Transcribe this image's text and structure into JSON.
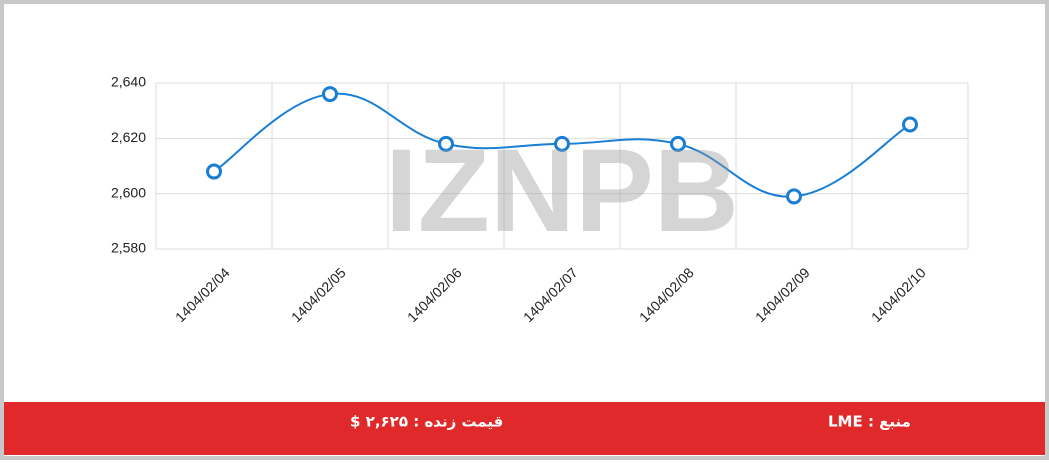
{
  "chart_data": {
    "type": "line",
    "categories": [
      "1404/02/04",
      "1404/02/05",
      "1404/02/06",
      "1404/02/07",
      "1404/02/08",
      "1404/02/09",
      "1404/02/10"
    ],
    "values": [
      2608,
      2636,
      2618,
      2618,
      2618,
      2599,
      2625
    ],
    "color": "#1a7fd4",
    "ylim": [
      2580,
      2640
    ],
    "yticks": [
      {
        "value": 2580,
        "label": "2,580"
      },
      {
        "value": 2600,
        "label": "2,600"
      },
      {
        "value": 2620,
        "label": "2,620"
      },
      {
        "value": 2640,
        "label": "2,640"
      }
    ],
    "grid": true
  },
  "watermark": "IZNPB",
  "footer": {
    "price": "قیمت زنده : ۲,۶۲۵ $",
    "source": "منبع : LME"
  }
}
